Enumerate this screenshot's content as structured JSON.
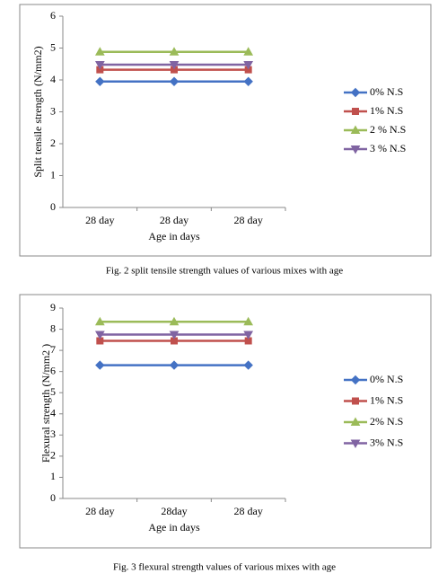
{
  "chart_data": [
    {
      "type": "line",
      "caption": "Fig. 2 split tensile strength values of various mixes with age",
      "x_label": "Age in days",
      "y_label": "Split tensile strength (N/mm2)",
      "categories": [
        "28 day",
        "28 day",
        "28 day"
      ],
      "ylim": [
        0,
        6
      ],
      "yticks": [
        0,
        1,
        2,
        3,
        4,
        5,
        6
      ],
      "series": [
        {
          "name": "0% N.S",
          "color": "#4472c4",
          "marker": "diamond",
          "values": [
            3.95,
            3.95,
            3.95
          ]
        },
        {
          "name": "1% N.S",
          "color": "#c0504d",
          "marker": "square",
          "values": [
            4.32,
            4.32,
            4.32
          ]
        },
        {
          "name": "2 % N.S",
          "color": "#9bbb59",
          "marker": "triangle",
          "values": [
            4.88,
            4.88,
            4.88
          ]
        },
        {
          "name": "3 % N.S",
          "color": "#8064a2",
          "marker": "triangle-down",
          "values": [
            4.48,
            4.48,
            4.48
          ]
        }
      ]
    },
    {
      "type": "line",
      "caption": "Fig. 3 flexural strength values of various mixes with age",
      "x_label": "Age in days",
      "y_label": "Flexural strength (N/mm2 )",
      "categories": [
        "28 day",
        "28day",
        "28 day"
      ],
      "ylim": [
        0,
        9
      ],
      "yticks": [
        0,
        1,
        2,
        3,
        4,
        5,
        6,
        7,
        8,
        9
      ],
      "series": [
        {
          "name": "0% N.S",
          "color": "#4472c4",
          "marker": "diamond",
          "values": [
            6.3,
            6.3,
            6.3
          ]
        },
        {
          "name": "1% N.S",
          "color": "#c0504d",
          "marker": "square",
          "values": [
            7.45,
            7.45,
            7.45
          ]
        },
        {
          "name": "2% N.S",
          "color": "#9bbb59",
          "marker": "triangle",
          "values": [
            8.35,
            8.35,
            8.35
          ]
        },
        {
          "name": "3% N.S",
          "color": "#8064a2",
          "marker": "triangle-down",
          "values": [
            7.75,
            7.75,
            7.75
          ]
        }
      ]
    }
  ]
}
